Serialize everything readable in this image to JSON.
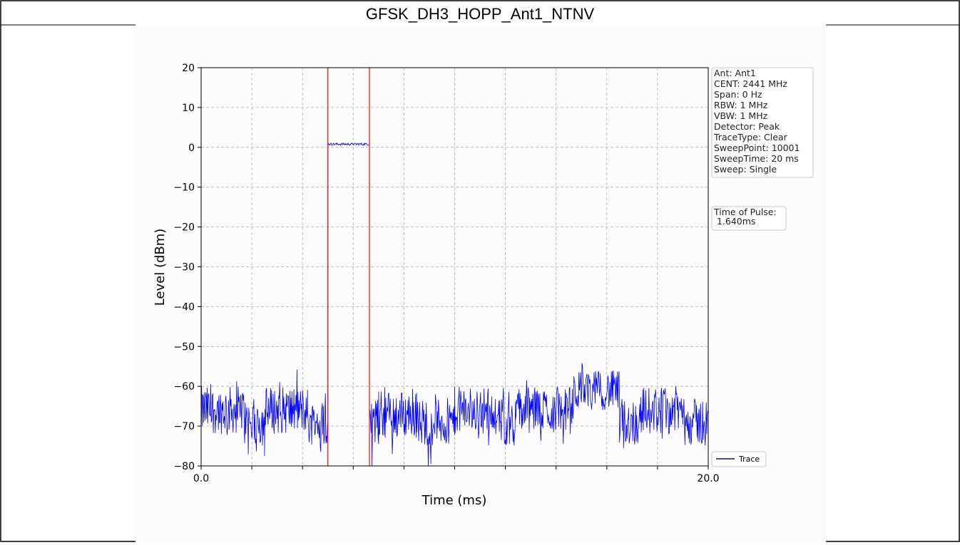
{
  "page": {
    "title": "GFSK_DH3_HOPP_Ant1_NTNV"
  },
  "chart_data": {
    "type": "line",
    "xlabel": "Time (ms)",
    "ylabel": "Level (dBm)",
    "xlim": [
      0,
      20
    ],
    "ylim": [
      -80,
      20
    ],
    "x_tick_values": [
      0,
      2,
      4,
      6,
      8,
      10,
      12,
      14,
      16,
      18,
      20
    ],
    "x_tick_labels": [
      "0.0",
      "",
      "",
      "",
      "",
      "",
      "",
      "",
      "",
      "",
      "20.0"
    ],
    "y_ticks": [
      20,
      10,
      0,
      -10,
      -20,
      -30,
      -40,
      -50,
      -60,
      -70,
      -80
    ],
    "y_tick_labels": [
      "20",
      "10",
      "0",
      "−10",
      "−20",
      "−30",
      "−40",
      "−50",
      "−60",
      "−70",
      "−80"
    ],
    "grid": true,
    "legend": {
      "placement": "bottom-right",
      "entries": [
        "Trace"
      ]
    },
    "series": [
      {
        "name": "Trace",
        "color": "#0000ff",
        "segments": [
          {
            "x_start": 0.0,
            "x_end": 1.7,
            "mean": -66,
            "spread": 6
          },
          {
            "x_start": 1.7,
            "x_end": 2.5,
            "mean": -69,
            "spread": 6
          },
          {
            "x_start": 2.5,
            "x_end": 4.2,
            "mean": -66,
            "spread": 6
          },
          {
            "x_start": 4.2,
            "x_end": 5.0,
            "mean": -69,
            "spread": 6
          },
          {
            "x_start": 5.0,
            "x_end": 6.64,
            "mean": 0.8,
            "spread": 0.3
          },
          {
            "x_start": 6.64,
            "x_end": 7.0,
            "mean": -69,
            "spread": 6
          },
          {
            "x_start": 7.0,
            "x_end": 8.5,
            "mean": -67,
            "spread": 6
          },
          {
            "x_start": 8.5,
            "x_end": 10.0,
            "mean": -69,
            "spread": 6
          },
          {
            "x_start": 10.0,
            "x_end": 11.7,
            "mean": -66,
            "spread": 6
          },
          {
            "x_start": 11.7,
            "x_end": 12.4,
            "mean": -69,
            "spread": 6
          },
          {
            "x_start": 12.4,
            "x_end": 14.7,
            "mean": -66,
            "spread": 6
          },
          {
            "x_start": 14.7,
            "x_end": 16.5,
            "mean": -61,
            "spread": 5
          },
          {
            "x_start": 16.5,
            "x_end": 17.3,
            "mean": -69,
            "spread": 6
          },
          {
            "x_start": 17.3,
            "x_end": 19.0,
            "mean": -66,
            "spread": 6
          },
          {
            "x_start": 19.0,
            "x_end": 20.0,
            "mean": -69,
            "spread": 6
          }
        ]
      }
    ],
    "markers": [
      {
        "x": 5.0,
        "color": "#ff0000"
      },
      {
        "x": 6.64,
        "color": "#ff0000"
      }
    ],
    "info_box": [
      "Ant: Ant1",
      "CENT: 2441 MHz",
      "Span: 0 Hz",
      "RBW: 1 MHz",
      "VBW: 1 MHz",
      "Detector: Peak",
      "TraceType: Clear",
      "SweepPoint: 10001",
      "SweepTime: 20 ms",
      "Sweep: Single"
    ],
    "pulse_box": [
      "Time of Pulse:",
      " 1.640ms"
    ]
  }
}
